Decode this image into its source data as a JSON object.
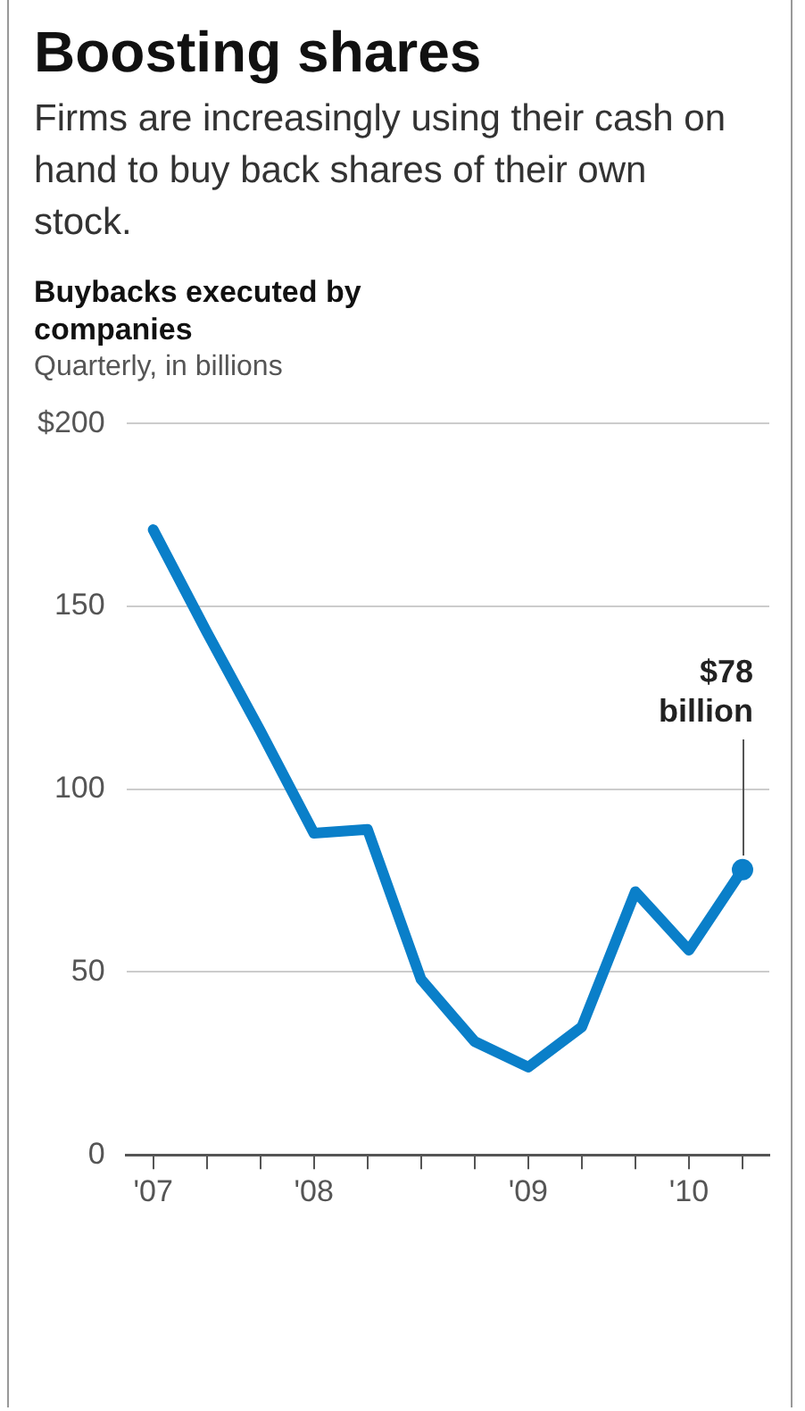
{
  "chart_data": {
    "type": "line",
    "title": "Boosting shares",
    "subtitle": "Firms are increasingly using their cash on hand to buy back shares of their own stock.",
    "ylabel": "Quarterly, in billions",
    "annotations": [
      "Buybacks executed by companies",
      "$78 billion"
    ],
    "categories": [
      "'07",
      null,
      null,
      "'08",
      null,
      null,
      null,
      "'09",
      null,
      null,
      "'10",
      null
    ],
    "series": [
      {
        "color": "#0a7fc9",
        "values": [
          171,
          143,
          116,
          88,
          89,
          48,
          31,
          24,
          35,
          72,
          56,
          78
        ]
      }
    ],
    "ylim": [
      0,
      200
    ],
    "yticks": [
      0,
      50,
      100,
      150,
      {
        "value": 200,
        "label": "$200"
      }
    ],
    "grid": "y",
    "legend": false,
    "marker": "none",
    "line_style": "solid"
  }
}
